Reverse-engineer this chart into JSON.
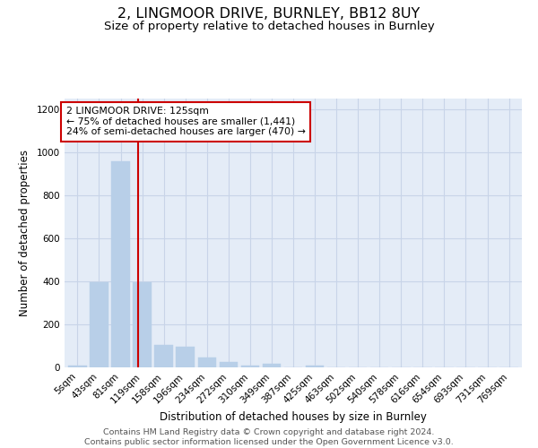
{
  "title_line1": "2, LINGMOOR DRIVE, BURNLEY, BB12 8UY",
  "title_line2": "Size of property relative to detached houses in Burnley",
  "xlabel": "Distribution of detached houses by size in Burnley",
  "ylabel": "Number of detached properties",
  "categories": [
    "5sqm",
    "43sqm",
    "81sqm",
    "119sqm",
    "158sqm",
    "196sqm",
    "234sqm",
    "272sqm",
    "310sqm",
    "349sqm",
    "387sqm",
    "425sqm",
    "463sqm",
    "502sqm",
    "540sqm",
    "578sqm",
    "616sqm",
    "654sqm",
    "693sqm",
    "731sqm",
    "769sqm"
  ],
  "values": [
    10,
    395,
    960,
    395,
    105,
    95,
    45,
    25,
    10,
    15,
    0,
    10,
    0,
    0,
    0,
    0,
    0,
    0,
    0,
    0,
    0
  ],
  "bar_color": "#b8cfe8",
  "bar_edgecolor": "#b8cfe8",
  "vline_x_idx": 2.82,
  "vline_color": "#cc0000",
  "annotation_line1": "2 LINGMOOR DRIVE: 125sqm",
  "annotation_line2": "← 75% of detached houses are smaller (1,441)",
  "annotation_line3": "24% of semi-detached houses are larger (470) →",
  "annotation_box_color": "white",
  "annotation_box_edgecolor": "#cc0000",
  "ylim": [
    0,
    1250
  ],
  "yticks": [
    0,
    200,
    400,
    600,
    800,
    1000,
    1200
  ],
  "grid_color": "#c8d4e8",
  "background_color": "#e4ecf7",
  "footer_line1": "Contains HM Land Registry data © Crown copyright and database right 2024.",
  "footer_line2": "Contains public sector information licensed under the Open Government Licence v3.0.",
  "title_fontsize": 11.5,
  "subtitle_fontsize": 9.5,
  "axis_label_fontsize": 8.5,
  "tick_fontsize": 7.5,
  "annotation_fontsize": 7.8,
  "footer_fontsize": 6.8
}
